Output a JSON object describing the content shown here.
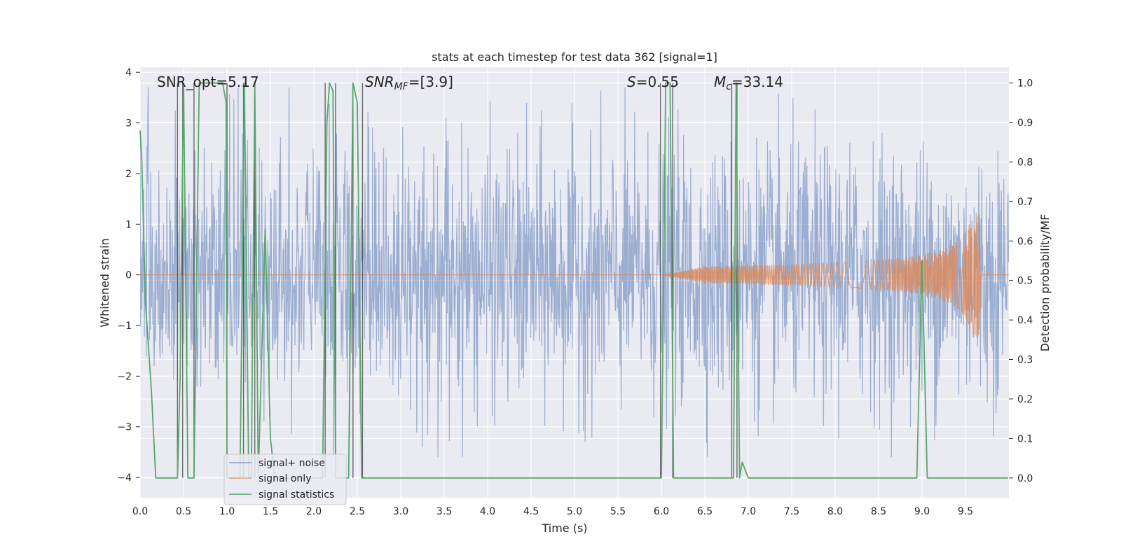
{
  "chart_data": {
    "type": "line",
    "title": "stats at each timestep for test data 362 [signal=1]",
    "xlabel": "Time (s)",
    "ylabel_left": "Whitened strain",
    "ylabel_right": "Detection probability/MF",
    "xlim": [
      0.0,
      10.0
    ],
    "ylim_left": [
      -4.4,
      4.1
    ],
    "ylim_right": [
      -0.05,
      1.04
    ],
    "x_ticks": [
      "0.0",
      "0.5",
      "1.0",
      "1.5",
      "2.0",
      "2.5",
      "3.0",
      "3.5",
      "4.0",
      "4.5",
      "5.0",
      "5.5",
      "6.0",
      "6.5",
      "7.0",
      "7.5",
      "8.0",
      "8.5",
      "9.0",
      "9.5"
    ],
    "y_ticks_left": [
      "−4",
      "−3",
      "−2",
      "−1",
      "0",
      "1",
      "2",
      "3",
      "4"
    ],
    "y_ticks_right": [
      "0.0",
      "0.1",
      "0.2",
      "0.3",
      "0.4",
      "0.5",
      "0.6",
      "0.7",
      "0.8",
      "0.9",
      "1.0"
    ],
    "grid": true,
    "legend_position": "lower-left",
    "annotations": {
      "snr_opt": "SNR_opt=5.17",
      "snr_mf_main": "SNR",
      "snr_mf_sub": "MF",
      "snr_mf_value": "=[3.9]",
      "s_main": "S",
      "s_value": "=0.55",
      "mc_main": "M",
      "mc_sub": "c",
      "mc_value": "=33.14"
    },
    "series": [
      {
        "name": "signal+ noise",
        "axis": "left",
        "color": "#4c72b0",
        "description_values": {
          "noise_std": 1.25,
          "peak": 3.7,
          "trough": -3.6
        }
      },
      {
        "name": "signal only",
        "axis": "left",
        "color": "#dd8452",
        "chirp": {
          "t_start": 6.0,
          "t_merge": 9.67,
          "peak_amplitude": 1.25
        }
      },
      {
        "name": "signal statistics",
        "axis": "right",
        "color": "#55a868",
        "x": [
          0.0,
          0.02,
          0.06,
          0.13,
          0.18,
          0.43,
          0.46,
          0.5,
          0.55,
          0.56,
          0.6,
          0.62,
          0.68,
          0.69,
          0.95,
          0.99,
          1.0,
          1.03,
          1.15,
          1.2,
          1.25,
          1.28,
          1.32,
          1.36,
          1.44,
          1.5,
          1.55,
          1.6,
          1.75,
          2.05,
          2.1,
          2.15,
          2.18,
          2.22,
          2.25,
          2.33,
          2.4,
          2.45,
          2.5,
          2.55,
          2.58,
          2.62,
          2.7,
          6.0,
          6.05,
          6.1,
          6.14,
          6.2,
          6.3,
          6.8,
          6.83,
          6.86,
          6.9,
          6.93,
          7.0,
          8.94,
          9.0,
          9.06,
          9.1,
          9.99
        ],
        "y": [
          0.88,
          0.8,
          0.45,
          0.22,
          0.0,
          0.0,
          0.25,
          1.0,
          0.0,
          0.0,
          0.0,
          0.0,
          1.0,
          1.0,
          1.0,
          0.95,
          0.0,
          0.0,
          0.0,
          1.0,
          0.0,
          0.0,
          1.0,
          0.0,
          0.63,
          0.1,
          0.0,
          0.0,
          0.0,
          0.0,
          0.0,
          0.9,
          1.0,
          0.98,
          0.0,
          0.0,
          0.0,
          1.0,
          0.95,
          0.0,
          0.0,
          0.0,
          0.0,
          0.0,
          1.0,
          1.0,
          0.0,
          0.0,
          0.0,
          0.0,
          0.0,
          1.0,
          0.0,
          0.04,
          0.0,
          0.0,
          0.55,
          0.0,
          0.0,
          0.0
        ]
      }
    ],
    "vertical_lines_x": [
      0.43,
      0.49,
      0.62,
      1.0,
      1.19,
      1.32,
      2.13,
      2.25,
      2.45,
      2.56,
      5.99,
      6.13,
      6.81,
      6.87
    ]
  }
}
